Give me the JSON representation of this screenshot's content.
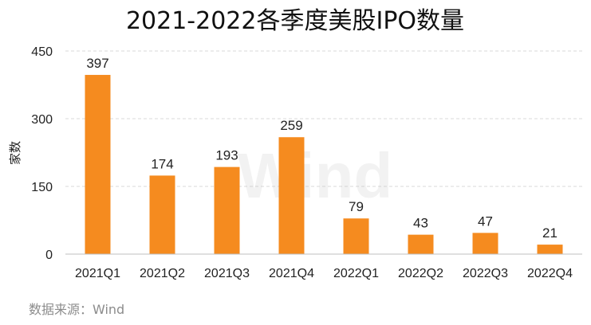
{
  "chart_data": {
    "type": "bar",
    "title": "2021-2022各季度美股IPO数量",
    "ylabel": "家数",
    "xlabel": "",
    "categories": [
      "2021Q1",
      "2021Q2",
      "2021Q3",
      "2021Q4",
      "2022Q1",
      "2022Q2",
      "2022Q3",
      "2022Q4"
    ],
    "values": [
      397,
      174,
      193,
      259,
      79,
      43,
      47,
      21
    ],
    "ylim": [
      0,
      450
    ],
    "yticks": [
      0,
      150,
      300,
      450
    ],
    "grid": true,
    "bar_color": "#F58B1F",
    "source": "数据来源：Wind",
    "watermark": "Wind"
  }
}
